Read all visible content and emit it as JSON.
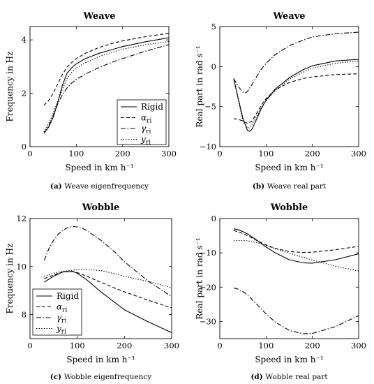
{
  "legend_entries": [
    {
      "label": "Rigid",
      "sub": "",
      "style": "solid"
    },
    {
      "label": "α",
      "sub": "ri",
      "style": "dashed"
    },
    {
      "label": "γ",
      "sub": "ri",
      "style": "dashdot"
    },
    {
      "label": "y",
      "sub": "ri",
      "style": "dotted"
    }
  ],
  "chart_data": [
    {
      "type": "line",
      "title": "Weave",
      "xlabel": "Speed in km h⁻¹",
      "ylabel": "Frequency in Hz",
      "caption_label": "(a)",
      "caption_text": "Weave eigenfrequency",
      "xlim": [
        0,
        300
      ],
      "ylim": [
        0,
        4.5
      ],
      "xticks": [
        0,
        100,
        200,
        300
      ],
      "yticks": [
        0,
        2,
        4
      ],
      "grid": false,
      "legend_position": "lower-right",
      "series": [
        {
          "name": "Rigid",
          "style": "solid",
          "x": [
            30,
            40,
            50,
            60,
            70,
            80,
            90,
            100,
            120,
            150,
            180,
            200,
            250,
            300
          ],
          "y": [
            0.5,
            0.72,
            1.1,
            1.65,
            2.3,
            2.75,
            2.95,
            3.1,
            3.3,
            3.5,
            3.65,
            3.75,
            3.93,
            4.08
          ]
        },
        {
          "name": "α_ri",
          "style": "dashed",
          "x": [
            30,
            40,
            50,
            60,
            70,
            80,
            90,
            100,
            120,
            150,
            180,
            200,
            250,
            300
          ],
          "y": [
            1.55,
            1.72,
            2.0,
            2.35,
            2.7,
            2.98,
            3.15,
            3.3,
            3.5,
            3.72,
            3.88,
            3.96,
            4.12,
            4.25
          ]
        },
        {
          "name": "γ_ri",
          "style": "dashdot",
          "x": [
            30,
            40,
            50,
            60,
            70,
            80,
            90,
            100,
            120,
            150,
            180,
            200,
            250,
            300
          ],
          "y": [
            0.5,
            0.75,
            1.15,
            1.6,
            1.95,
            2.2,
            2.38,
            2.52,
            2.72,
            2.97,
            3.18,
            3.3,
            3.58,
            3.82
          ]
        },
        {
          "name": "y_ri",
          "style": "dotted",
          "x": [
            30,
            40,
            50,
            60,
            70,
            80,
            90,
            100,
            120,
            150,
            180,
            200,
            250,
            300
          ],
          "y": [
            0.55,
            0.85,
            1.25,
            1.7,
            2.15,
            2.55,
            2.78,
            2.95,
            3.15,
            3.38,
            3.55,
            3.65,
            3.82,
            3.94
          ]
        }
      ]
    },
    {
      "type": "line",
      "title": "Weave",
      "xlabel": "Speed in km h⁻¹",
      "ylabel": "Real part in rad s⁻¹",
      "caption_label": "(b)",
      "caption_text": "Weave real part",
      "xlim": [
        0,
        300
      ],
      "ylim": [
        -10,
        5
      ],
      "xticks": [
        0,
        100,
        200,
        300
      ],
      "yticks": [
        -10,
        -5,
        0,
        5
      ],
      "grid": false,
      "series": [
        {
          "name": "Rigid",
          "style": "solid",
          "x": [
            30,
            40,
            50,
            60,
            65,
            70,
            80,
            90,
            100,
            120,
            150,
            180,
            200,
            250,
            300
          ],
          "y": [
            -1.5,
            -4.0,
            -6.5,
            -8.0,
            -8.1,
            -7.8,
            -6.5,
            -5.2,
            -4.2,
            -2.8,
            -1.4,
            -0.4,
            0.1,
            0.7,
            0.9
          ]
        },
        {
          "name": "α_ri",
          "style": "dashed",
          "x": [
            30,
            40,
            50,
            60,
            70,
            80,
            90,
            100,
            120,
            150,
            180,
            200,
            250,
            300
          ],
          "y": [
            -6.5,
            -6.6,
            -6.8,
            -7.1,
            -6.8,
            -5.8,
            -4.8,
            -4.0,
            -2.9,
            -2.0,
            -1.5,
            -1.3,
            -1.0,
            -0.9
          ]
        },
        {
          "name": "γ_ri",
          "style": "dashdot",
          "x": [
            30,
            40,
            50,
            55,
            60,
            70,
            80,
            90,
            100,
            120,
            150,
            180,
            200,
            250,
            300
          ],
          "y": [
            -1.5,
            -2.5,
            -3.2,
            -3.3,
            -3.1,
            -2.2,
            -1.2,
            -0.3,
            0.4,
            1.5,
            2.6,
            3.3,
            3.7,
            4.1,
            4.3
          ]
        },
        {
          "name": "y_ri",
          "style": "dotted",
          "x": [
            30,
            40,
            50,
            60,
            65,
            70,
            80,
            90,
            100,
            120,
            150,
            180,
            200,
            250,
            300
          ],
          "y": [
            -1.5,
            -4.2,
            -6.8,
            -7.7,
            -7.6,
            -7.2,
            -6.2,
            -5.1,
            -4.3,
            -3.0,
            -1.6,
            -0.7,
            -0.2,
            0.4,
            0.7
          ]
        }
      ]
    },
    {
      "type": "line",
      "title": "Wobble",
      "xlabel": "Speed in km h⁻¹",
      "ylabel": "Frequency in Hz",
      "caption_label": "(c)",
      "caption_text": "Wobble eigenfrequency",
      "xlim": [
        0,
        300
      ],
      "ylim": [
        7,
        12
      ],
      "xticks": [
        0,
        100,
        200,
        300
      ],
      "yticks": [
        8,
        10,
        12
      ],
      "grid": false,
      "legend_position": "lower-left",
      "series": [
        {
          "name": "Rigid",
          "style": "solid",
          "x": [
            30,
            50,
            70,
            90,
            100,
            120,
            150,
            180,
            200,
            250,
            300
          ],
          "y": [
            9.35,
            9.6,
            9.78,
            9.8,
            9.72,
            9.45,
            8.95,
            8.5,
            8.2,
            7.7,
            7.25
          ]
        },
        {
          "name": "α_ri",
          "style": "dashed",
          "x": [
            30,
            50,
            70,
            90,
            100,
            120,
            150,
            180,
            200,
            250,
            300
          ],
          "y": [
            9.5,
            9.65,
            9.78,
            9.8,
            9.75,
            9.6,
            9.35,
            9.1,
            8.95,
            8.6,
            8.28
          ]
        },
        {
          "name": "γ_ri",
          "style": "dashdot",
          "x": [
            30,
            40,
            50,
            60,
            70,
            80,
            90,
            100,
            110,
            120,
            150,
            180,
            200,
            250,
            300
          ],
          "y": [
            10.25,
            10.75,
            11.1,
            11.35,
            11.52,
            11.62,
            11.67,
            11.65,
            11.6,
            11.5,
            11.1,
            10.6,
            10.2,
            9.4,
            8.75
          ]
        },
        {
          "name": "y_ri",
          "style": "dotted",
          "x": [
            30,
            50,
            70,
            90,
            100,
            120,
            150,
            180,
            200,
            250,
            300
          ],
          "y": [
            9.6,
            9.72,
            9.8,
            9.85,
            9.87,
            9.88,
            9.83,
            9.7,
            9.6,
            9.38,
            9.12
          ]
        }
      ]
    },
    {
      "type": "line",
      "title": "Wobble",
      "xlabel": "Speed in km h⁻¹",
      "ylabel": "Real part in rad s⁻¹",
      "caption_label": "(d)",
      "caption_text": "Wobble real part",
      "xlim": [
        0,
        300
      ],
      "ylim": [
        -35,
        0
      ],
      "xticks": [
        0,
        100,
        200,
        300
      ],
      "yticks": [
        -30,
        -20,
        -10,
        0
      ],
      "grid": false,
      "series": [
        {
          "name": "Rigid",
          "style": "solid",
          "x": [
            30,
            40,
            50,
            60,
            80,
            100,
            120,
            150,
            180,
            200,
            250,
            300
          ],
          "y": [
            -3.0,
            -3.3,
            -3.8,
            -4.5,
            -6.3,
            -8.3,
            -10.0,
            -12.0,
            -12.9,
            -13.0,
            -12.0,
            -10.3
          ]
        },
        {
          "name": "α_ri",
          "style": "dashed",
          "x": [
            30,
            40,
            50,
            60,
            80,
            100,
            120,
            150,
            180,
            200,
            250,
            300
          ],
          "y": [
            -3.5,
            -3.9,
            -4.4,
            -5.0,
            -6.4,
            -7.7,
            -8.7,
            -9.6,
            -9.9,
            -9.8,
            -9.1,
            -8.1
          ]
        },
        {
          "name": "γ_ri",
          "style": "dashdot",
          "x": [
            30,
            40,
            50,
            60,
            80,
            100,
            120,
            150,
            180,
            200,
            250,
            300
          ],
          "y": [
            -20.2,
            -20.6,
            -21.3,
            -22.3,
            -25.0,
            -27.8,
            -30.2,
            -32.6,
            -33.6,
            -33.5,
            -31.5,
            -28.3
          ]
        },
        {
          "name": "y_ri",
          "style": "dotted",
          "x": [
            30,
            40,
            50,
            60,
            80,
            100,
            120,
            150,
            180,
            200,
            250,
            300
          ],
          "y": [
            -6.5,
            -6.4,
            -6.4,
            -6.5,
            -7.0,
            -7.9,
            -8.8,
            -10.1,
            -11.3,
            -12.1,
            -13.9,
            -15.3
          ]
        }
      ]
    }
  ]
}
